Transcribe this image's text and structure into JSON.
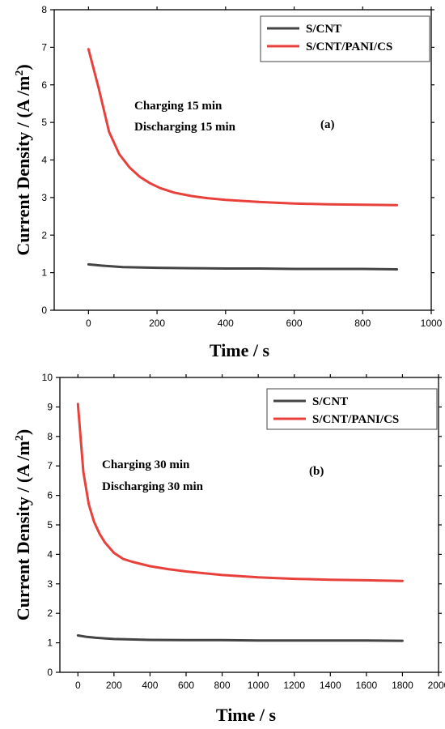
{
  "chart_data": [
    {
      "type": "line",
      "title": "",
      "xlabel": "Time / s",
      "ylabel": "Current Density / (A /m",
      "ylabel_sup": "2",
      "ylabel_close": ")",
      "xlim": [
        -100,
        1000
      ],
      "ylim": [
        0,
        8
      ],
      "xticks": [
        0,
        200,
        400,
        600,
        800,
        1000
      ],
      "yticks": [
        0,
        1,
        2,
        3,
        4,
        5,
        6,
        7,
        8
      ],
      "legend_position": "top-right",
      "annotations": [
        "Charging 15 min",
        "Discharging 15 min",
        "(a)"
      ],
      "series": [
        {
          "name": "S/CNT",
          "color": "#444444",
          "x": [
            0,
            50,
            100,
            200,
            300,
            400,
            500,
            600,
            700,
            800,
            900
          ],
          "y": [
            1.22,
            1.18,
            1.15,
            1.13,
            1.12,
            1.11,
            1.11,
            1.1,
            1.1,
            1.1,
            1.09
          ]
        },
        {
          "name": "S/CNT/PANI/CS",
          "color": "#e8413c",
          "x": [
            0,
            30,
            60,
            90,
            120,
            150,
            180,
            210,
            250,
            300,
            350,
            400,
            500,
            600,
            700,
            800,
            900
          ],
          "y": [
            6.95,
            5.9,
            4.75,
            4.15,
            3.8,
            3.55,
            3.38,
            3.25,
            3.13,
            3.04,
            2.98,
            2.94,
            2.88,
            2.84,
            2.82,
            2.81,
            2.8
          ]
        }
      ]
    },
    {
      "type": "line",
      "title": "",
      "xlabel": "Time / s",
      "ylabel": "Current Density / (A /m",
      "ylabel_sup": "2",
      "ylabel_close": ")",
      "xlim": [
        -100,
        2000
      ],
      "ylim": [
        0,
        10
      ],
      "xticks": [
        0,
        200,
        400,
        600,
        800,
        1000,
        1200,
        1400,
        1600,
        1800,
        2000
      ],
      "yticks": [
        0,
        1,
        2,
        3,
        4,
        5,
        6,
        7,
        8,
        9,
        10
      ],
      "legend_position": "top-right",
      "annotations": [
        "Charging 30 min",
        "Discharging 30 min",
        "(b)"
      ],
      "series": [
        {
          "name": "S/CNT",
          "color": "#444444",
          "x": [
            0,
            50,
            100,
            200,
            400,
            600,
            800,
            1000,
            1200,
            1400,
            1600,
            1800
          ],
          "y": [
            1.25,
            1.2,
            1.17,
            1.13,
            1.1,
            1.09,
            1.09,
            1.08,
            1.08,
            1.08,
            1.08,
            1.07
          ]
        },
        {
          "name": "S/CNT/PANI/CS",
          "color": "#e8413c",
          "x": [
            0,
            30,
            60,
            90,
            120,
            150,
            200,
            250,
            300,
            400,
            500,
            600,
            800,
            1000,
            1200,
            1400,
            1600,
            1800
          ],
          "y": [
            9.1,
            6.8,
            5.7,
            5.1,
            4.7,
            4.4,
            4.05,
            3.85,
            3.75,
            3.6,
            3.5,
            3.42,
            3.3,
            3.22,
            3.17,
            3.14,
            3.12,
            3.1
          ]
        }
      ]
    }
  ]
}
